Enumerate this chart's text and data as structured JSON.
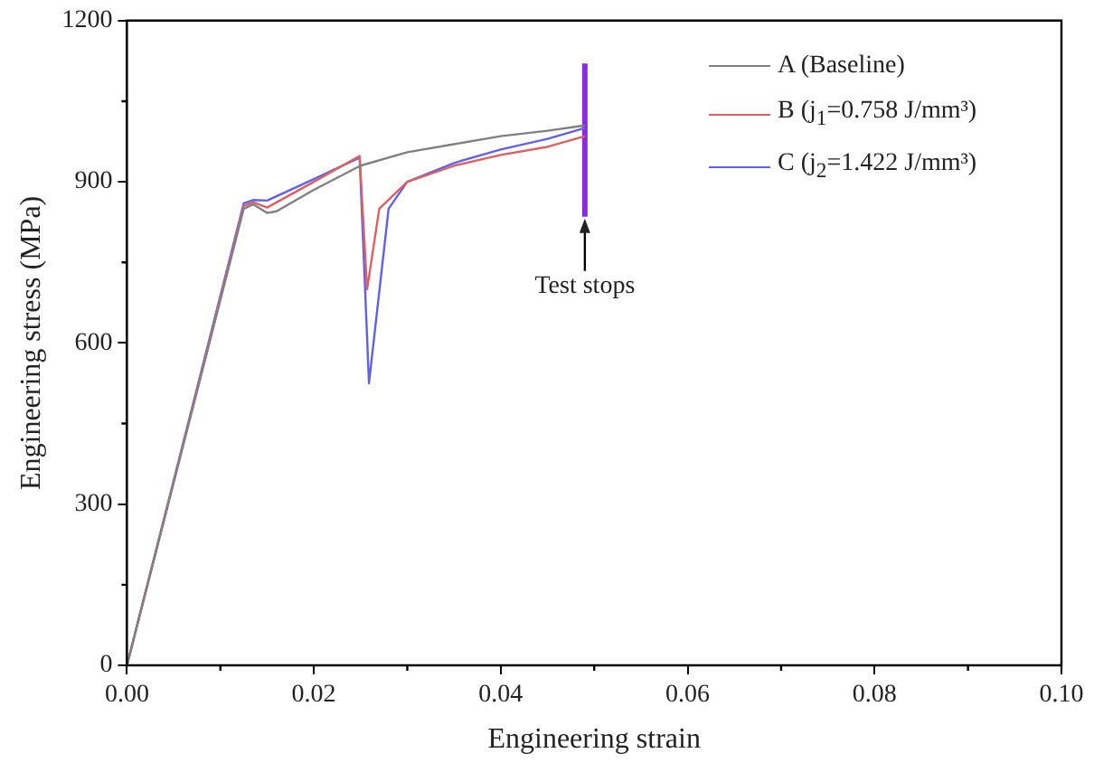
{
  "chart_data": {
    "type": "line",
    "xlabel": "Engineering strain",
    "ylabel": "Engineering stress (MPa)",
    "xlim": [
      0,
      0.1
    ],
    "xticks": [
      {
        "value": 0,
        "label": "0.00"
      },
      {
        "value": 0.02,
        "label": "0.02"
      },
      {
        "value": 0.04,
        "label": "0.04"
      },
      {
        "value": 0.06,
        "label": "0.06"
      },
      {
        "value": 0.08,
        "label": "0.08"
      },
      {
        "value": 0.1,
        "label": "0.10"
      }
    ],
    "ylim": [
      0,
      1200
    ],
    "yticks": [
      0,
      300,
      600,
      900,
      1200
    ],
    "grid": false,
    "legend": "top right",
    "marker": "none",
    "line_style": "solid",
    "series": [
      {
        "name": "A (Baseline)",
        "color": "#808080",
        "x": [
          0,
          0.0125,
          0.0135,
          0.015,
          0.016,
          0.02,
          0.025,
          0.03,
          0.035,
          0.04,
          0.045,
          0.049
        ],
        "values": [
          0,
          850,
          858,
          842,
          845,
          885,
          930,
          955,
          970,
          985,
          995,
          1005
        ]
      },
      {
        "name": "B (j$_{1}$=0.758 J/mm³)",
        "color": "#e06060",
        "x": [
          0,
          0.0125,
          0.0135,
          0.015,
          0.02,
          0.0249,
          0.0257,
          0.027,
          0.03,
          0.035,
          0.04,
          0.045,
          0.049
        ],
        "values": [
          0,
          855,
          862,
          852,
          900,
          948,
          700,
          850,
          900,
          930,
          950,
          965,
          985
        ]
      },
      {
        "name": "C (j$_{2}$=1.422 J/mm³)",
        "color": "#6060f0",
        "x": [
          0,
          0.0125,
          0.0135,
          0.015,
          0.02,
          0.0249,
          0.0259,
          0.028,
          0.03,
          0.035,
          0.04,
          0.045,
          0.049
        ],
        "values": [
          0,
          860,
          866,
          865,
          905,
          945,
          525,
          850,
          900,
          935,
          960,
          980,
          1000
        ]
      },
      {
        "color": "#8a2be2",
        "x": [
          0.049,
          0.049
        ],
        "values": [
          835,
          1120
        ]
      }
    ],
    "annotations": [
      {
        "text": "Test stops",
        "x": 0.049,
        "y": 835
      }
    ]
  }
}
